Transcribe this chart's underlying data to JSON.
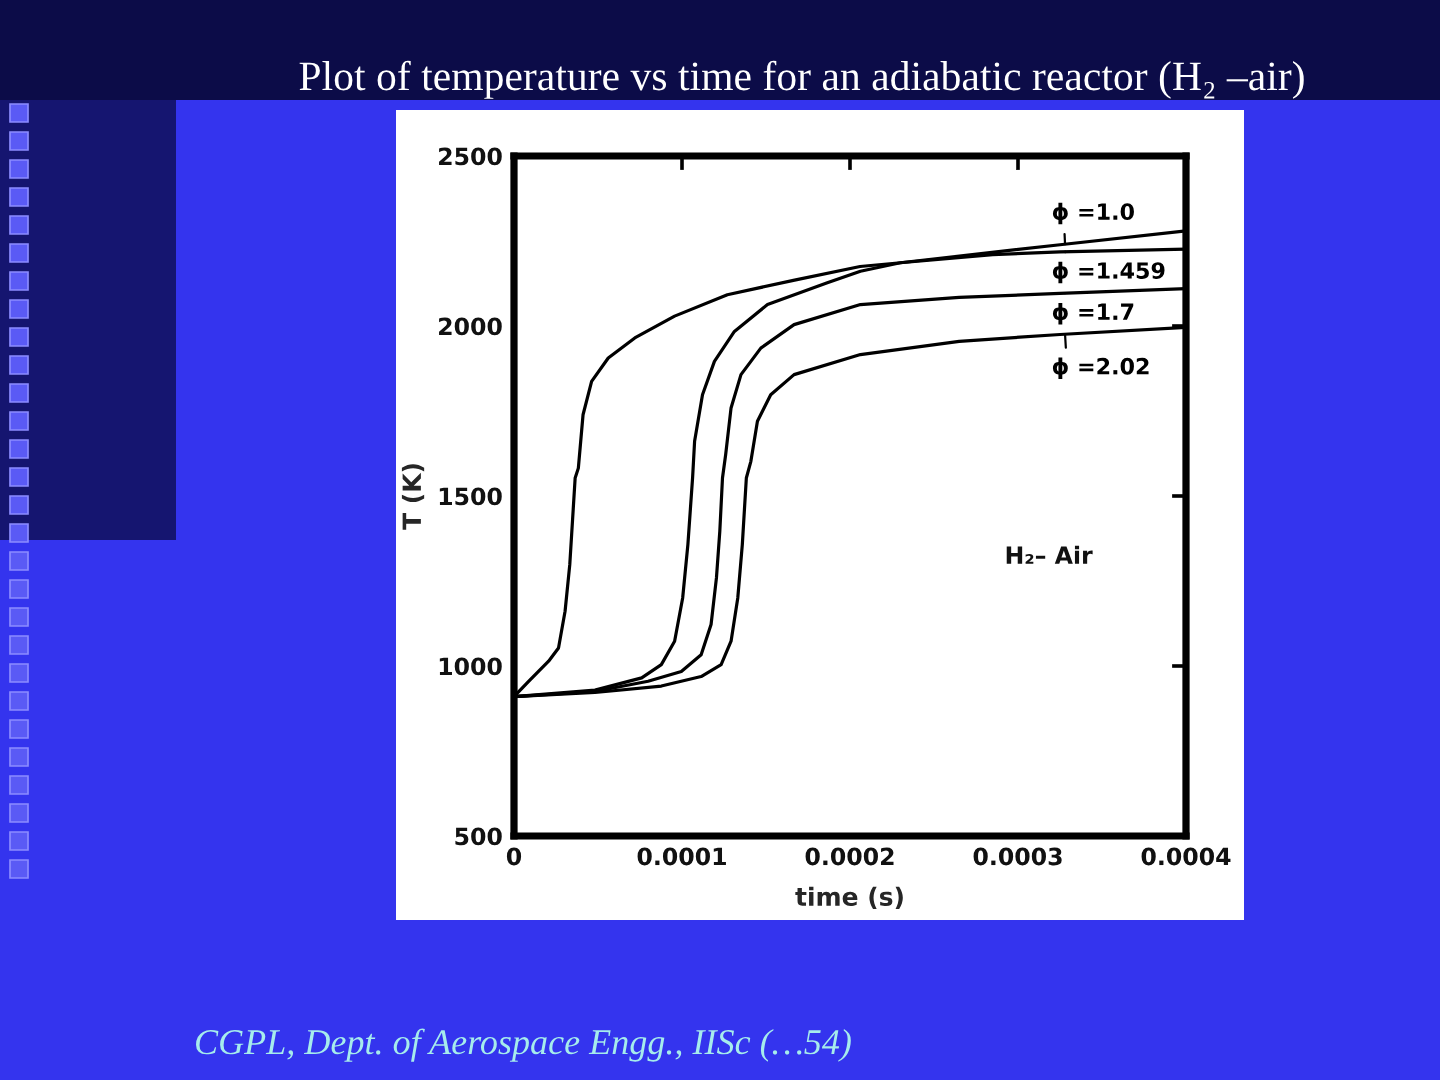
{
  "chart_data": {
    "type": "line",
    "title": "Plot of temperature vs time for an adiabatic reactor (H₂ –air)",
    "xlabel": "time (s)",
    "ylabel": "T (K)",
    "xlim": [
      0,
      0.0004
    ],
    "ylim": [
      500,
      2500
    ],
    "xticks": [
      0,
      0.0001,
      0.0002,
      0.0003,
      0.0004
    ],
    "yticks": [
      500,
      1000,
      1500,
      2000,
      2500
    ],
    "legend": "top right",
    "series": [
      {
        "name": "ϕ =1.0",
        "color": "#000000",
        "x": [
          0,
          8.7e-06,
          2.06e-05,
          2.65e-05,
          3.04e-05,
          3.32e-05,
          3.64e-05,
          3.83e-05,
          4.11e-05,
          4.62e-05,
          5.61e-05,
          7.19e-05,
          9.56e-05,
          0.000127,
          0.000167,
          0.000206,
          0.00023,
          0.000325,
          0.0004
        ],
        "values": [
          910,
          955,
          1014,
          1053,
          1161,
          1298,
          1553,
          1582,
          1739,
          1837,
          1906,
          1965,
          2029,
          2092,
          2135,
          2175,
          2186,
          2239,
          2280
        ]
      },
      {
        "name": "ϕ =1.459",
        "color": "#000000",
        "x": [
          0,
          4.82e-05,
          7.6e-05,
          8.77e-05,
          9.56e-05,
          0.0001004,
          0.0001035,
          0.0001063,
          0.0001075,
          0.0001122,
          0.0001193,
          0.0001312,
          0.0001509,
          0.0001865,
          0.0002062,
          0.00023,
          0.000285,
          0.000325,
          0.0004
        ],
        "values": [
          910,
          929,
          965,
          1004,
          1073,
          1200,
          1357,
          1553,
          1661,
          1798,
          1896,
          1984,
          2063,
          2127,
          2161,
          2186,
          2210,
          2218,
          2226
        ]
      },
      {
        "name": "ϕ =1.7",
        "color": "#000000",
        "x": [
          0,
          4.82e-05,
          7.98e-05,
          9.96e-05,
          0.0001114,
          0.0001173,
          0.0001205,
          0.0001225,
          0.0001241,
          0.000126,
          0.0001292,
          0.0001351,
          0.0001469,
          0.0001667,
          0.0002062,
          0.000265,
          0.000325,
          0.0004
        ],
        "values": [
          910,
          925,
          955,
          984,
          1033,
          1122,
          1259,
          1396,
          1553,
          1622,
          1759,
          1857,
          1935,
          2004,
          2063,
          2084,
          2096,
          2110
        ]
      },
      {
        "name": "ϕ =2.02",
        "color": "#000000",
        "x": [
          0,
          4.82e-05,
          8.77e-05,
          0.0001114,
          0.0001233,
          0.0001292,
          0.0001332,
          0.0001359,
          0.0001383,
          0.000141,
          0.0001449,
          0.0001528,
          0.0001667,
          0.0002062,
          0.000265,
          0.000325,
          0.0004
        ],
        "values": [
          910,
          922,
          941,
          969,
          1004,
          1073,
          1200,
          1357,
          1553,
          1602,
          1720,
          1798,
          1857,
          1916,
          1955,
          1975,
          1996
        ]
      }
    ],
    "annotations": [
      "H₂– Air",
      "CGPL, Dept. of Aerospace Engg., IISc (…54)"
    ]
  }
}
